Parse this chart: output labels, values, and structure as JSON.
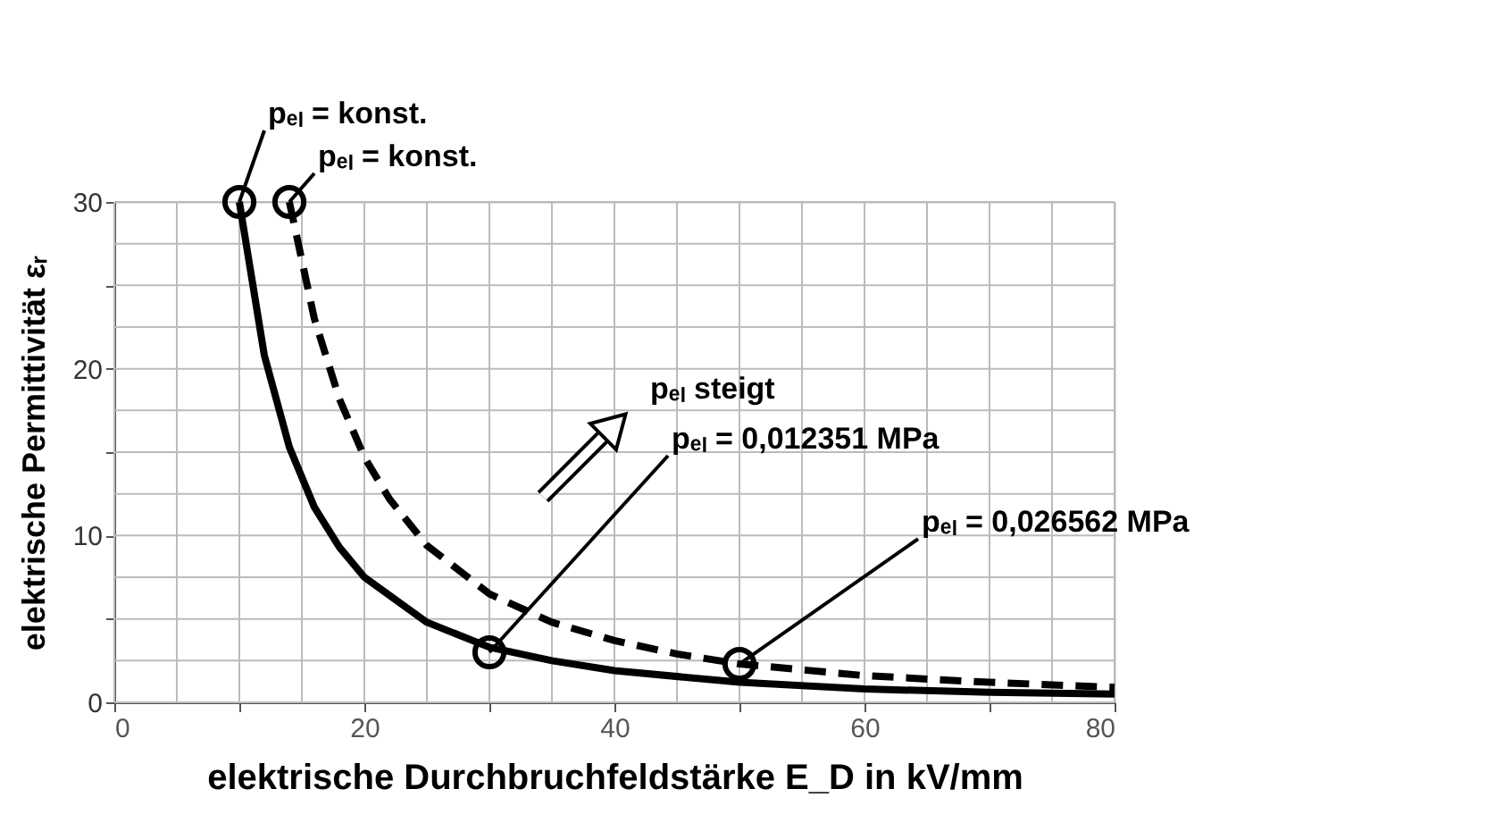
{
  "chart_data": {
    "type": "line",
    "xlabel": "elektrische Durchbruchfeldstärke E_D  in  kV/mm",
    "ylabel": "elektrische Permittivität  εᵣ",
    "series": [
      {
        "color": "#000000",
        "line_style": "solid",
        "x": [
          10,
          12,
          14,
          16,
          18,
          20,
          25,
          30,
          35,
          40,
          50,
          60,
          70,
          80
        ],
        "values": [
          30,
          20.8,
          15.3,
          11.7,
          9.3,
          7.5,
          4.8,
          3.3,
          2.5,
          1.9,
          1.2,
          0.8,
          0.6,
          0.5
        ]
      },
      {
        "color": "#000000",
        "line_style": "dashed",
        "x": [
          14,
          16,
          18,
          20,
          22,
          25,
          30,
          35,
          40,
          45,
          50,
          60,
          70,
          80
        ],
        "values": [
          30,
          23,
          18.2,
          14.7,
          12.2,
          9.4,
          6.5,
          4.8,
          3.7,
          2.9,
          2.3,
          1.6,
          1.2,
          0.9
        ]
      }
    ],
    "xlim": [
      0,
      80
    ],
    "ylim": [
      0,
      30
    ],
    "xticks": [
      0,
      {
        "value": 5,
        "label": null
      },
      {
        "value": 10,
        "label": null
      },
      {
        "value": 15,
        "label": null
      },
      20,
      {
        "value": 25,
        "label": null
      },
      {
        "value": 30,
        "label": null
      },
      {
        "value": 35,
        "label": null
      },
      40,
      {
        "value": 45,
        "label": null
      },
      {
        "value": 50,
        "label": null
      },
      {
        "value": 55,
        "label": null
      },
      60,
      {
        "value": 65,
        "label": null
      },
      {
        "value": 70,
        "label": null
      },
      {
        "value": 75,
        "label": null
      },
      80
    ],
    "yticks": [
      0,
      {
        "value": 2.5,
        "label": null
      },
      {
        "value": 5,
        "label": null
      },
      {
        "value": 7.5,
        "label": null
      },
      10,
      {
        "value": 12.5,
        "label": null
      },
      {
        "value": 15,
        "label": null
      },
      {
        "value": 17.5,
        "label": null
      },
      20,
      {
        "value": 22.5,
        "label": null
      },
      {
        "value": 25,
        "label": null
      },
      {
        "value": 27.5,
        "label": null
      },
      30
    ],
    "grid": true,
    "marker": "none",
    "annotations": [
      {
        "text": "pₑₗ = konst.",
        "x": 10,
        "y": 30
      },
      {
        "text": "pₑₗ = konst.",
        "x": 14,
        "y": 30
      },
      "pₑₗ steigt",
      {
        "text": "pₑₗ = 0,012351 MPa",
        "x": 30,
        "y": 3
      },
      {
        "text": "pₑₗ = 0,026562 MPa",
        "x": 50,
        "y": 2.3
      }
    ]
  }
}
